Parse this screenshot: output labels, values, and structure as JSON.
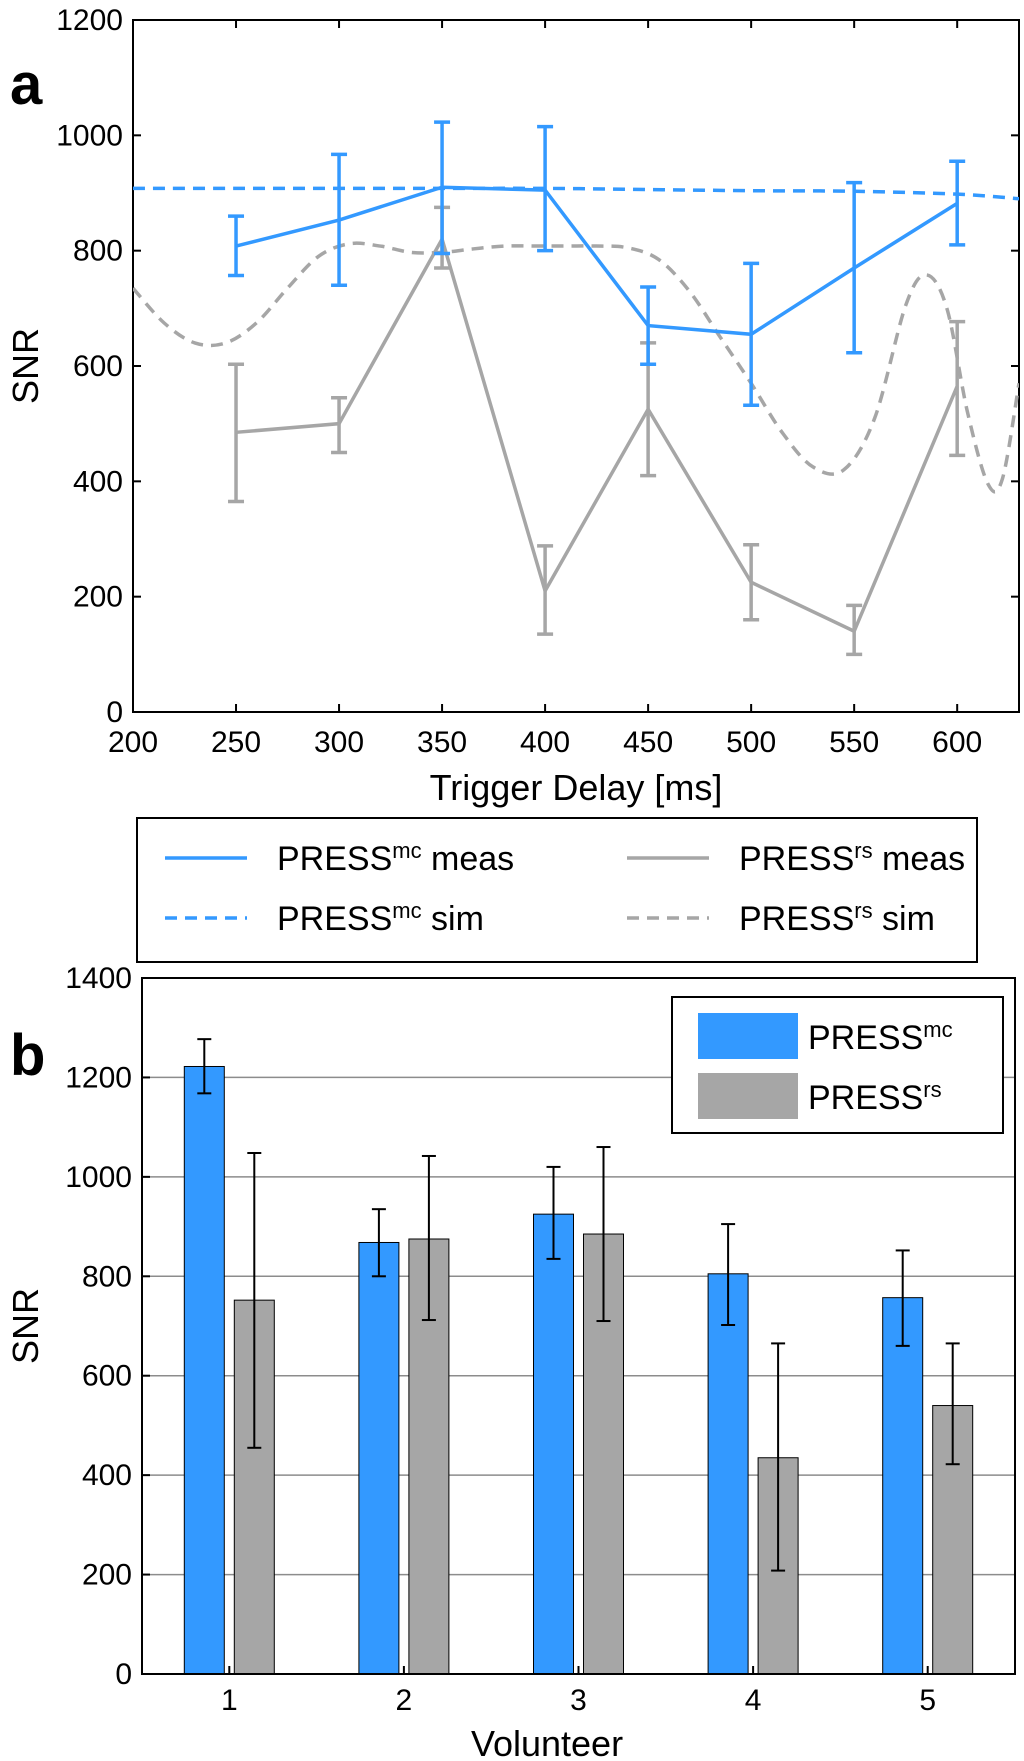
{
  "chart_data": [
    {
      "panel_label": "a",
      "type": "line",
      "xlabel": "Trigger Delay [ms]",
      "ylabel": "SNR",
      "xlim": [
        200,
        630
      ],
      "ylim": [
        0,
        1200
      ],
      "xticks": [
        "200",
        "250",
        "300",
        "350",
        "400",
        "450",
        "500",
        "550",
        "600"
      ],
      "yticks": [
        "0",
        "200",
        "400",
        "600",
        "800",
        "1000",
        "1200"
      ],
      "grid": false,
      "colors": {
        "mc": "#3399ff",
        "rs": "#a6a6a6"
      },
      "series": [
        {
          "key": "mc_meas",
          "name": "PRESS",
          "sup": "mc",
          "suffix": " meas",
          "style": "solid",
          "color": "#3399ff",
          "x": [
            250,
            300,
            350,
            400,
            450,
            500,
            550,
            600
          ],
          "y": [
            808,
            853,
            910,
            905,
            670,
            655,
            770,
            882
          ],
          "err_low": [
            757,
            740,
            795,
            800,
            603,
            532,
            623,
            810
          ],
          "err_high": [
            860,
            967,
            1023,
            1015,
            737,
            778,
            918,
            955
          ]
        },
        {
          "key": "mc_sim",
          "name": "PRESS",
          "sup": "mc",
          "suffix": " sim",
          "style": "dashed",
          "color": "#3399ff",
          "x": [
            200,
            250,
            300,
            350,
            400,
            450,
            500,
            550,
            600,
            630
          ],
          "y": [
            908,
            908,
            908,
            908,
            908,
            906,
            904,
            903,
            898,
            890
          ]
        },
        {
          "key": "rs_meas",
          "name": "PRESS",
          "sup": "rs",
          "suffix": " meas",
          "style": "solid",
          "color": "#a6a6a6",
          "x": [
            250,
            300,
            350,
            400,
            450,
            500,
            550,
            600
          ],
          "y": [
            485,
            500,
            820,
            210,
            525,
            225,
            140,
            565
          ],
          "err_low": [
            365,
            450,
            770,
            135,
            410,
            160,
            100,
            445
          ],
          "err_high": [
            603,
            545,
            875,
            288,
            640,
            290,
            185,
            677
          ]
        },
        {
          "key": "rs_sim",
          "name": "PRESS",
          "sup": "rs",
          "suffix": " sim",
          "style": "dashed",
          "color": "#a6a6a6",
          "x": [
            200,
            215,
            230,
            245,
            260,
            275,
            290,
            305,
            320,
            335,
            350,
            365,
            380,
            395,
            410,
            425,
            440,
            455,
            470,
            485,
            500,
            515,
            530,
            545,
            560,
            575,
            585,
            595,
            605,
            615,
            622,
            630
          ],
          "y": [
            735,
            675,
            640,
            640,
            675,
            735,
            790,
            812,
            808,
            797,
            797,
            803,
            808,
            808,
            808,
            808,
            805,
            785,
            730,
            650,
            570,
            485,
            425,
            420,
            510,
            705,
            758,
            700,
            520,
            395,
            405,
            570
          ]
        }
      ],
      "legend": {
        "placement": "below",
        "entries": [
          {
            "name": "PRESS",
            "sup": "mc",
            "suffix": " meas"
          },
          {
            "name": "PRESS",
            "sup": "rs",
            "suffix": " meas"
          },
          {
            "name": "PRESS",
            "sup": "mc",
            "suffix": " sim"
          },
          {
            "name": "PRESS",
            "sup": "rs",
            "suffix": " sim"
          }
        ]
      }
    },
    {
      "panel_label": "b",
      "type": "bar",
      "xlabel": "Volunteer",
      "ylabel": "SNR",
      "ylim": [
        0,
        1400
      ],
      "yticks": [
        "0",
        "200",
        "400",
        "600",
        "800",
        "1000",
        "1200",
        "1400"
      ],
      "categories": [
        "1",
        "2",
        "3",
        "4",
        "5"
      ],
      "grid": true,
      "series": [
        {
          "name": "PRESS",
          "sup": "mc",
          "color": "#3399ff",
          "values": [
            1222,
            868,
            925,
            805,
            757
          ],
          "err_low": [
            1168,
            800,
            835,
            702,
            660
          ],
          "err_high": [
            1277,
            935,
            1020,
            905,
            852
          ]
        },
        {
          "name": "PRESS",
          "sup": "rs",
          "color": "#a6a6a6",
          "values": [
            752,
            875,
            885,
            435,
            540
          ],
          "err_low": [
            455,
            712,
            710,
            208,
            422
          ],
          "err_high": [
            1048,
            1042,
            1060,
            665,
            665
          ]
        }
      ],
      "legend": {
        "placement": "top-right",
        "entries": [
          {
            "name": "PRESS",
            "sup": "mc"
          },
          {
            "name": "PRESS",
            "sup": "rs"
          }
        ]
      }
    }
  ]
}
